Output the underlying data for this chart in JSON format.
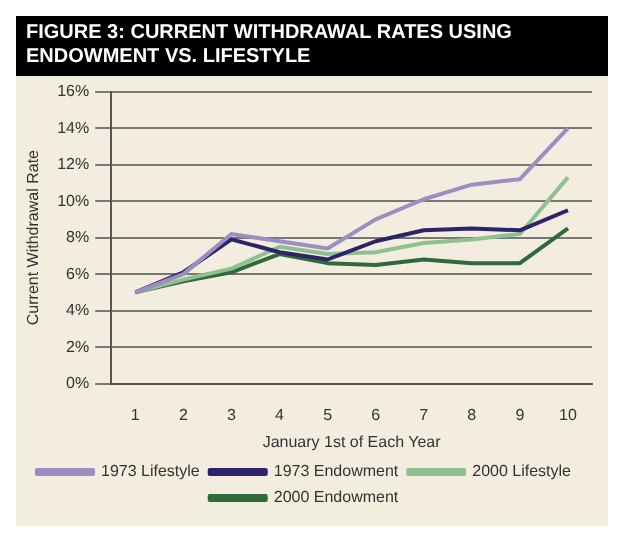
{
  "chart_data": {
    "type": "line",
    "title": "FIGURE 3: CURRENT WITHDRAWAL RATES USING ENDOWMENT VS. LIFESTYLE",
    "xlabel": "January 1st of Each Year",
    "ylabel": "Current Withdrawal Rate",
    "categories": [
      "1",
      "2",
      "3",
      "4",
      "5",
      "6",
      "7",
      "8",
      "9",
      "10"
    ],
    "series": [
      {
        "name": "1973 Lifestyle",
        "color": "#9a8fc0",
        "values": [
          5,
          6.0,
          8.2,
          7.8,
          7.4,
          9.0,
          10.1,
          10.9,
          11.2,
          14.0
        ]
      },
      {
        "name": "1973 Endowment",
        "color": "#2b2468",
        "values": [
          5,
          6.1,
          7.9,
          7.2,
          6.8,
          7.8,
          8.4,
          8.5,
          8.4,
          9.5
        ]
      },
      {
        "name": "2000 Lifestyle",
        "color": "#8fc08f",
        "values": [
          5,
          5.7,
          6.3,
          7.5,
          7.1,
          7.2,
          7.7,
          7.9,
          8.2,
          11.3
        ]
      },
      {
        "name": "2000 Endowment",
        "color": "#2f6a3a",
        "values": [
          5,
          5.6,
          6.1,
          7.1,
          6.6,
          6.5,
          6.8,
          6.6,
          6.6,
          8.5
        ]
      }
    ],
    "ylim": [
      0,
      16
    ],
    "yticks": [
      {
        "value": 0,
        "label": "0%"
      },
      {
        "value": 2,
        "label": "2%"
      },
      {
        "value": 4,
        "label": "4%"
      },
      {
        "value": 6,
        "label": "6%"
      },
      {
        "value": 8,
        "label": "8%"
      },
      {
        "value": 10,
        "label": "10%"
      },
      {
        "value": 12,
        "label": "12%"
      },
      {
        "value": 14,
        "label": "14%"
      },
      {
        "value": 16,
        "label": "16%"
      }
    ],
    "grid": "y",
    "legend": "bottom",
    "marker": "none",
    "line_style": "solid"
  }
}
